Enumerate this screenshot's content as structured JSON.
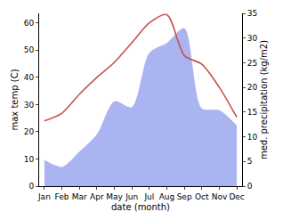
{
  "chart_data": {
    "type": "line",
    "x_label": "date (month)",
    "y_label": "max temp (C)",
    "y2_label": "med. precipitation (kg/m2)",
    "categories": [
      "Jan",
      "Feb",
      "Mar",
      "Apr",
      "May",
      "Jun",
      "Jul",
      "Aug",
      "Sep",
      "Oct",
      "Nov",
      "Dec"
    ],
    "series": [
      {
        "name": "med. precipitation (kg/m2)",
        "type": "area",
        "axis": "y2",
        "color": "#aab4f0",
        "values": [
          5.3,
          3.9,
          7,
          10.5,
          17.2,
          16,
          27,
          29,
          32,
          15.8,
          15.4,
          12.3
        ]
      },
      {
        "name": "max temp (C)",
        "type": "line",
        "axis": "y",
        "color": "#c85050",
        "values": [
          24,
          26.8,
          33.8,
          40,
          45.5,
          52.7,
          60,
          63,
          48,
          44.8,
          36.3,
          25.3
        ]
      }
    ],
    "ylim": [
      0,
      63.5
    ],
    "yticks": [
      0,
      10,
      20,
      30,
      40,
      50,
      60
    ],
    "y2lim": [
      0,
      35
    ],
    "y2ticks": [
      0,
      5,
      10,
      15,
      20,
      25,
      30,
      35
    ],
    "grid": false
  }
}
